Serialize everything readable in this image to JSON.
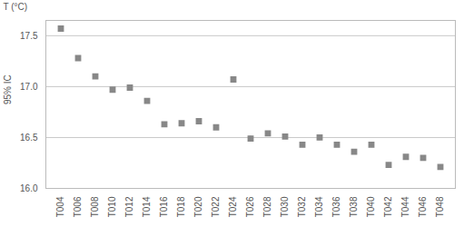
{
  "chart_data": {
    "type": "errorbar",
    "categories": [
      "T004",
      "T006",
      "T008",
      "T010",
      "T012",
      "T014",
      "T016",
      "T018",
      "T020",
      "T022",
      "T024",
      "T026",
      "T028",
      "T030",
      "T032",
      "T034",
      "T036",
      "T038",
      "T040",
      "T042",
      "T044",
      "T046",
      "T048"
    ],
    "values": [
      17.57,
      17.28,
      17.1,
      16.97,
      16.99,
      16.86,
      16.63,
      16.64,
      16.66,
      16.6,
      17.07,
      16.49,
      16.54,
      16.51,
      16.43,
      16.5,
      16.43,
      16.36,
      16.43,
      16.23,
      16.31,
      16.3,
      16.21
    ],
    "errors": [
      0.02,
      0.02,
      0.02,
      0.02,
      0.02,
      0.02,
      0.02,
      0.02,
      0.02,
      0.02,
      0.02,
      0.02,
      0.02,
      0.02,
      0.02,
      0.02,
      0.02,
      0.02,
      0.02,
      0.02,
      0.02,
      0.02,
      0.02
    ],
    "ylabel": "T (°C)",
    "annotations": [
      "95% IC"
    ],
    "ylim": [
      16.0,
      17.65
    ],
    "yticks": [
      {
        "value": 16.0,
        "label": "16.0"
      },
      16.5,
      {
        "value": 17.0,
        "label": "17.0"
      },
      17.5
    ],
    "color": "#888888",
    "marker": "square",
    "grid": true
  }
}
